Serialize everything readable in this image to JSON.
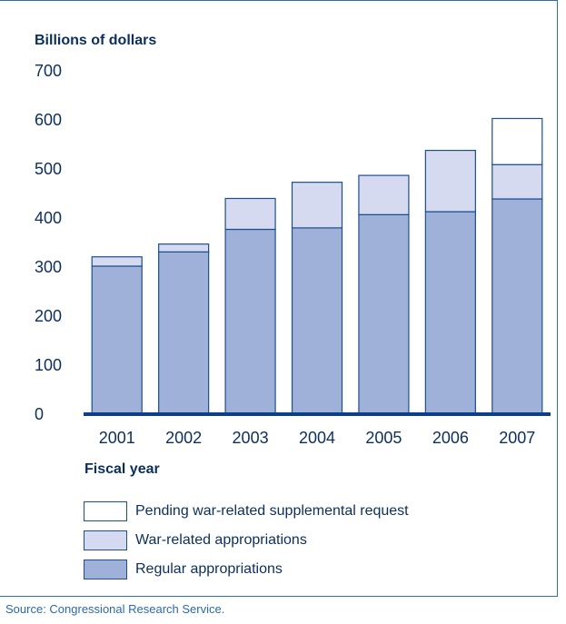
{
  "chart_data": {
    "type": "bar",
    "stacked": true,
    "ylabel": "Billions of dollars",
    "xlabel": "Fiscal year",
    "ylim": [
      0,
      700
    ],
    "yticks": [
      0,
      100,
      200,
      300,
      400,
      500,
      600,
      700
    ],
    "grid": false,
    "legend_position": "bottom",
    "categories": [
      "2001",
      "2002",
      "2003",
      "2004",
      "2005",
      "2006",
      "2007"
    ],
    "series": [
      {
        "name": "Regular appropriations",
        "color": "#9fb0d9",
        "values": [
          300,
          329,
          375,
          378,
          405,
          411,
          437
        ]
      },
      {
        "name": "War-related appropriations",
        "color": "#d5daf0",
        "values": [
          19,
          16,
          63,
          93,
          80,
          125,
          70
        ]
      },
      {
        "name": "Pending war-related supplemental request",
        "color": "#ffffff",
        "values": [
          0,
          0,
          0,
          0,
          0,
          0,
          94
        ]
      }
    ],
    "source": "Source: Congressional Research Service."
  }
}
